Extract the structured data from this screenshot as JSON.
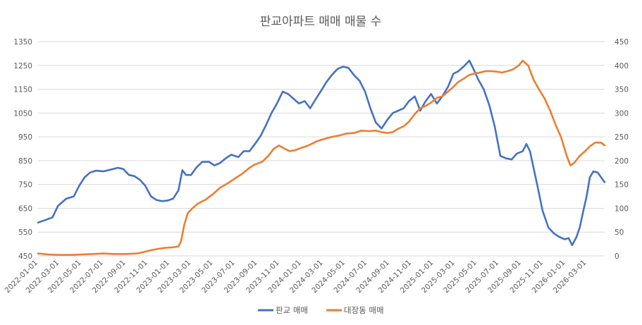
{
  "chart_data": {
    "type": "line",
    "title": "판교아파트 매매 매물 수",
    "xlabel": "",
    "ylabel": "",
    "y_left": {
      "min": 450,
      "max": 1350,
      "ticks": [
        "450",
        "550",
        "650",
        "750",
        "850",
        "950",
        "1050",
        "1150",
        "1250",
        "1350"
      ]
    },
    "y_right": {
      "min": 0,
      "max": 450,
      "ticks": [
        "0",
        "50",
        "100",
        "150",
        "200",
        "250",
        "300",
        "350",
        "400",
        "450"
      ]
    },
    "x_range": [
      "2022-01-01",
      "2026-04-20"
    ],
    "x_ticks": [
      "2022-01-01",
      "2022-03-01",
      "2022-05-01",
      "2022-07-01",
      "2022-09-01",
      "2022-11-01",
      "2023-01-01",
      "2023-03-01",
      "2023-05-01",
      "2023-07-01",
      "2023-09-01",
      "2023-11-01",
      "2024-01-01",
      "2024-03-01",
      "2024-05-01",
      "2024-07-01",
      "2024-09-01",
      "2024-11-01",
      "2025-01-01",
      "2025-03-01",
      "2025-05-01",
      "2025-07-01",
      "2025-09-01",
      "2025-11-01",
      "2026-01-01",
      "2026-03-01"
    ],
    "grid": true,
    "legend_position": "bottom",
    "series": [
      {
        "name": "판교 매매",
        "axis": "left",
        "color": "#4472c4",
        "points": [
          [
            "2022-01-01",
            590
          ],
          [
            "2022-01-20",
            600
          ],
          [
            "2022-02-10",
            612
          ],
          [
            "2022-02-25",
            660
          ],
          [
            "2022-03-20",
            690
          ],
          [
            "2022-04-10",
            700
          ],
          [
            "2022-04-25",
            745
          ],
          [
            "2022-05-10",
            780
          ],
          [
            "2022-05-25",
            800
          ],
          [
            "2022-06-10",
            808
          ],
          [
            "2022-07-01",
            805
          ],
          [
            "2022-07-20",
            812
          ],
          [
            "2022-08-10",
            820
          ],
          [
            "2022-08-25",
            815
          ],
          [
            "2022-09-10",
            790
          ],
          [
            "2022-09-25",
            785
          ],
          [
            "2022-10-10",
            770
          ],
          [
            "2022-10-25",
            745
          ],
          [
            "2022-11-10",
            700
          ],
          [
            "2022-11-25",
            685
          ],
          [
            "2022-12-10",
            680
          ],
          [
            "2022-12-25",
            682
          ],
          [
            "2023-01-10",
            690
          ],
          [
            "2023-01-25",
            725
          ],
          [
            "2023-02-05",
            810
          ],
          [
            "2023-02-15",
            790
          ],
          [
            "2023-03-01",
            790
          ],
          [
            "2023-03-15",
            820
          ],
          [
            "2023-04-01",
            845
          ],
          [
            "2023-04-20",
            845
          ],
          [
            "2023-05-05",
            830
          ],
          [
            "2023-05-20",
            840
          ],
          [
            "2023-06-05",
            860
          ],
          [
            "2023-06-20",
            875
          ],
          [
            "2023-07-10",
            865
          ],
          [
            "2023-07-25",
            890
          ],
          [
            "2023-08-10",
            890
          ],
          [
            "2023-08-25",
            920
          ],
          [
            "2023-09-10",
            955
          ],
          [
            "2023-09-25",
            1000
          ],
          [
            "2023-10-10",
            1050
          ],
          [
            "2023-10-25",
            1090
          ],
          [
            "2023-11-10",
            1140
          ],
          [
            "2023-11-25",
            1130
          ],
          [
            "2023-12-10",
            1110
          ],
          [
            "2023-12-25",
            1090
          ],
          [
            "2024-01-10",
            1100
          ],
          [
            "2024-01-25",
            1070
          ],
          [
            "2024-02-10",
            1110
          ],
          [
            "2024-02-25",
            1145
          ],
          [
            "2024-03-10",
            1180
          ],
          [
            "2024-03-25",
            1210
          ],
          [
            "2024-04-10",
            1235
          ],
          [
            "2024-04-25",
            1245
          ],
          [
            "2024-05-10",
            1240
          ],
          [
            "2024-05-25",
            1210
          ],
          [
            "2024-06-10",
            1185
          ],
          [
            "2024-06-25",
            1140
          ],
          [
            "2024-07-10",
            1070
          ],
          [
            "2024-07-25",
            1010
          ],
          [
            "2024-08-10",
            985
          ],
          [
            "2024-08-25",
            1020
          ],
          [
            "2024-09-10",
            1050
          ],
          [
            "2024-09-25",
            1060
          ],
          [
            "2024-10-10",
            1070
          ],
          [
            "2024-10-25",
            1100
          ],
          [
            "2024-11-10",
            1120
          ],
          [
            "2024-11-25",
            1060
          ],
          [
            "2024-12-10",
            1100
          ],
          [
            "2024-12-25",
            1130
          ],
          [
            "2025-01-10",
            1090
          ],
          [
            "2025-01-25",
            1120
          ],
          [
            "2025-02-10",
            1160
          ],
          [
            "2025-02-25",
            1215
          ],
          [
            "2025-03-10",
            1225
          ],
          [
            "2025-03-25",
            1245
          ],
          [
            "2025-04-10",
            1270
          ],
          [
            "2025-04-20",
            1240
          ],
          [
            "2025-05-05",
            1190
          ],
          [
            "2025-05-20",
            1150
          ],
          [
            "2025-06-05",
            1080
          ],
          [
            "2025-06-20",
            990
          ],
          [
            "2025-07-05",
            870
          ],
          [
            "2025-07-20",
            860
          ],
          [
            "2025-08-05",
            855
          ],
          [
            "2025-08-20",
            880
          ],
          [
            "2025-09-05",
            890
          ],
          [
            "2025-09-15",
            920
          ],
          [
            "2025-09-25",
            890
          ],
          [
            "2025-10-05",
            820
          ],
          [
            "2025-10-15",
            750
          ],
          [
            "2025-10-30",
            640
          ],
          [
            "2025-11-15",
            570
          ],
          [
            "2025-11-30",
            545
          ],
          [
            "2025-12-15",
            530
          ],
          [
            "2025-12-30",
            520
          ],
          [
            "2026-01-10",
            525
          ],
          [
            "2026-01-20",
            495
          ],
          [
            "2026-02-01",
            530
          ],
          [
            "2026-02-10",
            570
          ],
          [
            "2026-02-20",
            640
          ],
          [
            "2026-03-01",
            700
          ],
          [
            "2026-03-10",
            780
          ],
          [
            "2026-03-20",
            805
          ],
          [
            "2026-04-01",
            800
          ],
          [
            "2026-04-10",
            780
          ],
          [
            "2026-04-20",
            760
          ]
        ]
      },
      {
        "name": "대장동 매매",
        "axis": "right",
        "color": "#ed7d31",
        "points": [
          [
            "2022-01-01",
            5
          ],
          [
            "2022-02-01",
            3
          ],
          [
            "2022-03-01",
            2
          ],
          [
            "2022-04-01",
            2
          ],
          [
            "2022-05-01",
            3
          ],
          [
            "2022-06-01",
            4
          ],
          [
            "2022-07-01",
            5
          ],
          [
            "2022-08-01",
            4
          ],
          [
            "2022-09-01",
            4
          ],
          [
            "2022-10-01",
            5
          ],
          [
            "2022-10-20",
            8
          ],
          [
            "2022-11-10",
            12
          ],
          [
            "2022-12-01",
            15
          ],
          [
            "2022-12-20",
            17
          ],
          [
            "2023-01-10",
            18
          ],
          [
            "2023-01-25",
            20
          ],
          [
            "2023-02-01",
            30
          ],
          [
            "2023-02-10",
            65
          ],
          [
            "2023-02-20",
            90
          ],
          [
            "2023-03-05",
            100
          ],
          [
            "2023-03-20",
            110
          ],
          [
            "2023-04-10",
            118
          ],
          [
            "2023-05-01",
            130
          ],
          [
            "2023-05-20",
            143
          ],
          [
            "2023-06-10",
            152
          ],
          [
            "2023-07-01",
            163
          ],
          [
            "2023-07-20",
            172
          ],
          [
            "2023-08-10",
            185
          ],
          [
            "2023-08-25",
            192
          ],
          [
            "2023-09-15",
            198
          ],
          [
            "2023-10-01",
            210
          ],
          [
            "2023-10-15",
            224
          ],
          [
            "2023-10-30",
            232
          ],
          [
            "2023-11-15",
            225
          ],
          [
            "2023-11-30",
            220
          ],
          [
            "2023-12-15",
            222
          ],
          [
            "2024-01-01",
            227
          ],
          [
            "2024-01-20",
            232
          ],
          [
            "2024-02-10",
            240
          ],
          [
            "2024-03-01",
            245
          ],
          [
            "2024-03-25",
            250
          ],
          [
            "2024-04-15",
            253
          ],
          [
            "2024-05-05",
            257
          ],
          [
            "2024-05-25",
            258
          ],
          [
            "2024-06-15",
            263
          ],
          [
            "2024-07-05",
            262
          ],
          [
            "2024-07-25",
            263
          ],
          [
            "2024-08-10",
            260
          ],
          [
            "2024-08-25",
            258
          ],
          [
            "2024-09-10",
            260
          ],
          [
            "2024-09-25",
            267
          ],
          [
            "2024-10-10",
            272
          ],
          [
            "2024-10-25",
            282
          ],
          [
            "2024-11-10",
            298
          ],
          [
            "2024-11-25",
            310
          ],
          [
            "2024-12-10",
            315
          ],
          [
            "2024-12-25",
            322
          ],
          [
            "2025-01-10",
            332
          ],
          [
            "2025-01-25",
            335
          ],
          [
            "2025-02-10",
            345
          ],
          [
            "2025-02-25",
            355
          ],
          [
            "2025-03-10",
            365
          ],
          [
            "2025-03-25",
            372
          ],
          [
            "2025-04-10",
            380
          ],
          [
            "2025-04-25",
            383
          ],
          [
            "2025-05-10",
            385
          ],
          [
            "2025-05-25",
            388
          ],
          [
            "2025-06-10",
            388
          ],
          [
            "2025-06-25",
            387
          ],
          [
            "2025-07-10",
            385
          ],
          [
            "2025-07-25",
            388
          ],
          [
            "2025-08-10",
            392
          ],
          [
            "2025-08-25",
            400
          ],
          [
            "2025-09-05",
            410
          ],
          [
            "2025-09-20",
            400
          ],
          [
            "2025-10-05",
            370
          ],
          [
            "2025-10-20",
            350
          ],
          [
            "2025-11-05",
            330
          ],
          [
            "2025-11-20",
            305
          ],
          [
            "2025-12-05",
            275
          ],
          [
            "2025-12-20",
            250
          ],
          [
            "2026-01-05",
            210
          ],
          [
            "2026-01-15",
            190
          ],
          [
            "2026-01-25",
            195
          ],
          [
            "2026-02-10",
            210
          ],
          [
            "2026-02-25",
            220
          ],
          [
            "2026-03-10",
            230
          ],
          [
            "2026-03-25",
            238
          ],
          [
            "2026-04-10",
            238
          ],
          [
            "2026-04-20",
            232
          ]
        ]
      }
    ]
  }
}
